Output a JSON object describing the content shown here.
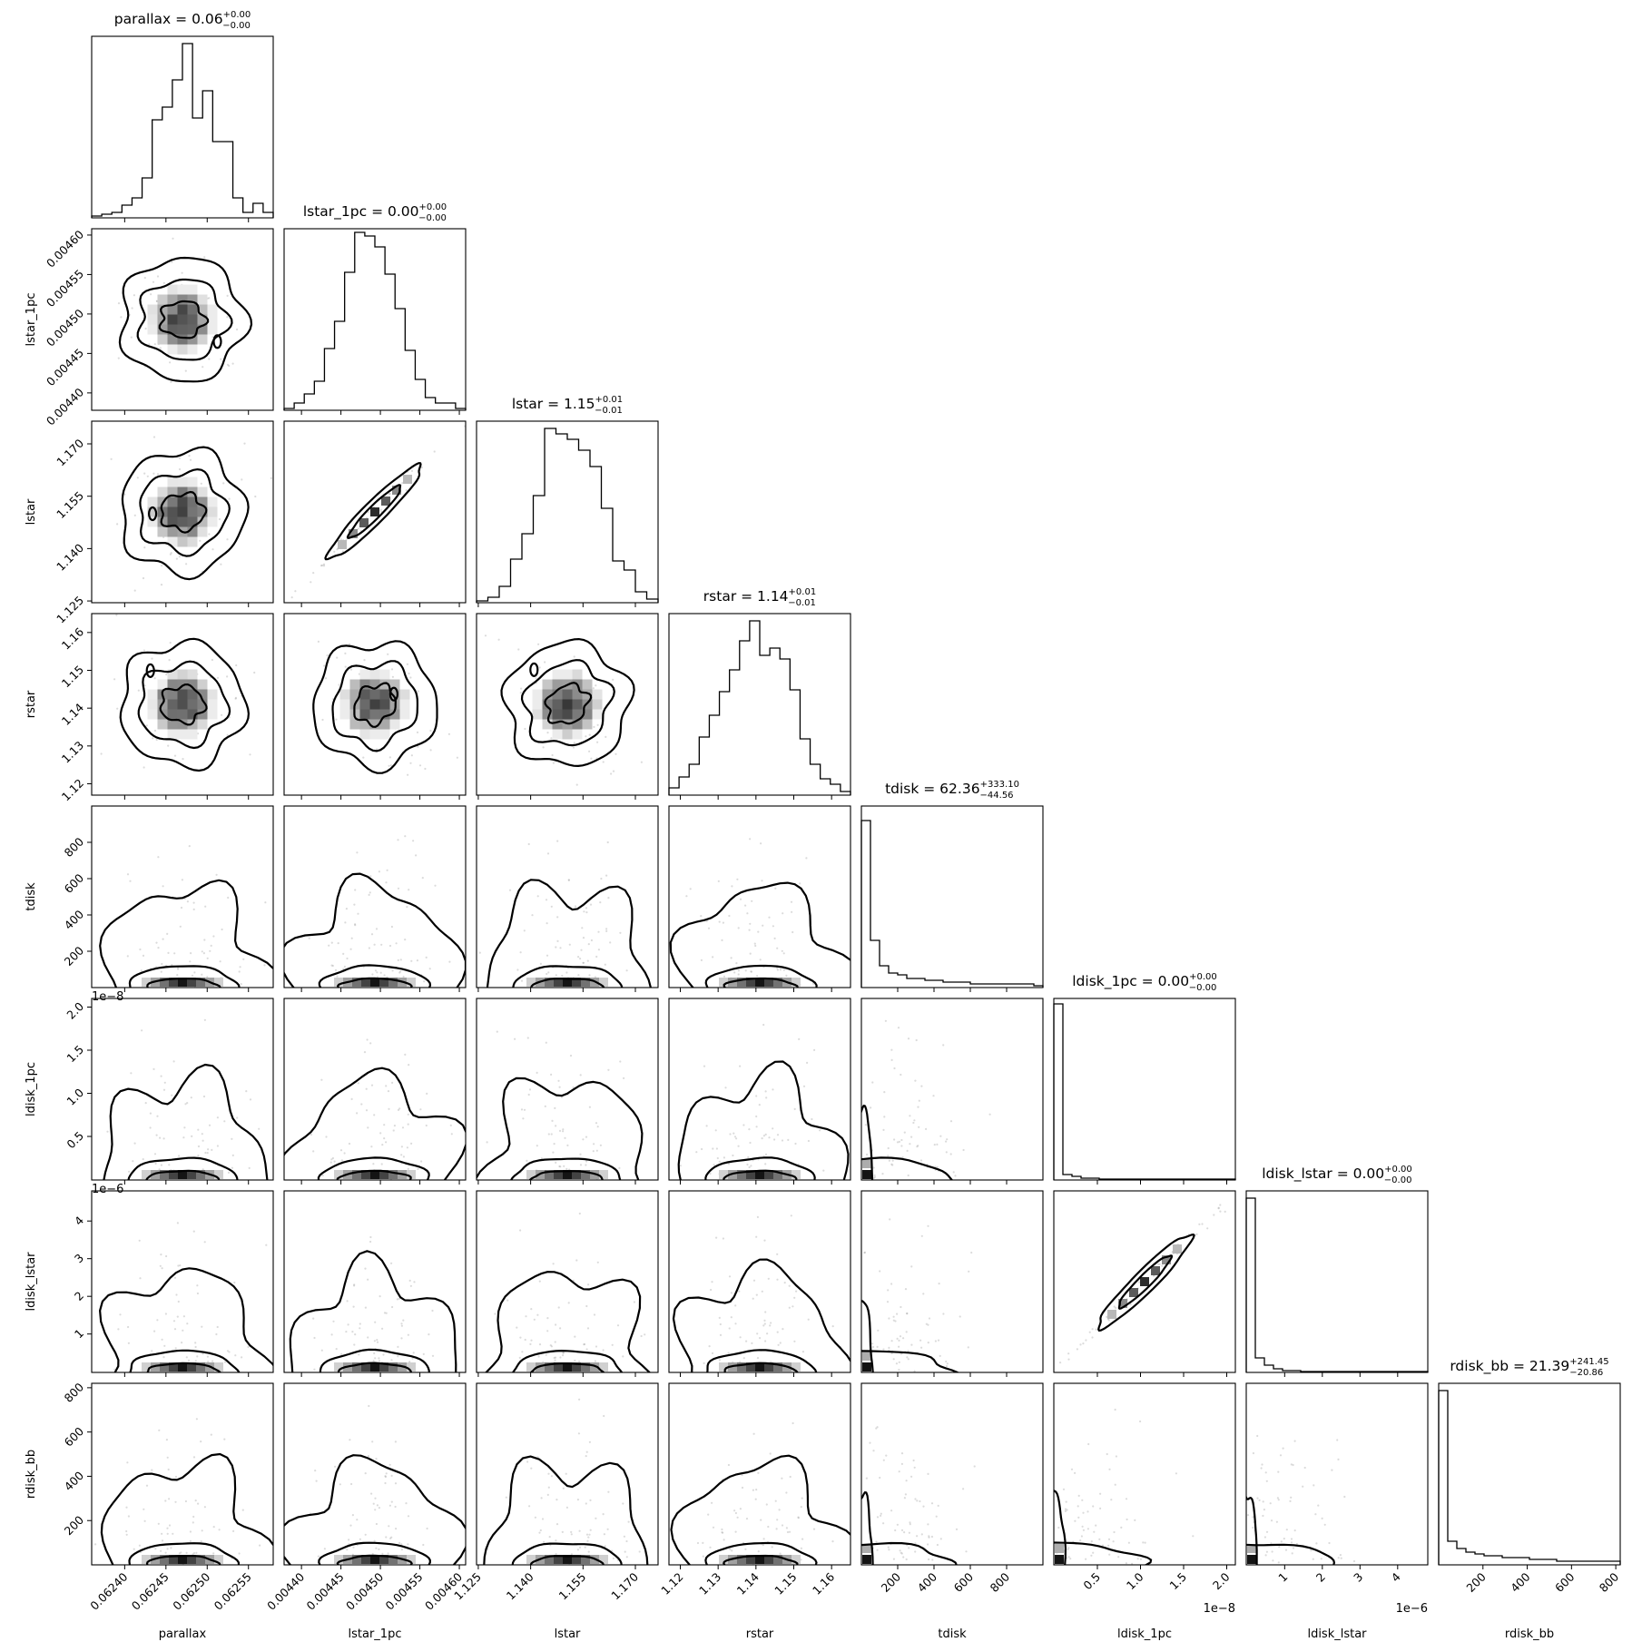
{
  "chart_data": {
    "type": "corner",
    "parameters": [
      {
        "name": "parallax",
        "label": "parallax",
        "median": 0.06249,
        "sigma": 3.5e-05,
        "range": [
          0.06236,
          0.06258
        ],
        "ticks": [
          "0.06240",
          "0.06245",
          "0.06250",
          "0.06255"
        ],
        "tick_values": [
          0.0624,
          0.06245,
          0.0625,
          0.06255
        ],
        "title": "parallax = 0.06",
        "title_sup": "+0.00",
        "title_sub": "−0.00",
        "offset_text": "",
        "hist": [
          0.01,
          0.02,
          0.03,
          0.07,
          0.11,
          0.22,
          0.54,
          0.61,
          0.76,
          0.96,
          0.55,
          0.7,
          0.42,
          0.42,
          0.11,
          0.03,
          0.08,
          0.03
        ]
      },
      {
        "name": "lstar_1pc",
        "label": "lstar_1pc",
        "median": 0.004495,
        "sigma": 3.2e-05,
        "range": [
          0.004378,
          0.004608
        ],
        "ticks": [
          "0.00440",
          "0.00445",
          "0.00450",
          "0.00455",
          "0.00460"
        ],
        "tick_values": [
          0.0044,
          0.00445,
          0.0045,
          0.00455,
          0.0046
        ],
        "title": "lstar_1pc = 0.00",
        "title_sup": "+0.00",
        "title_sub": "−0.00",
        "offset_text": "",
        "hist": [
          0.01,
          0.04,
          0.09,
          0.16,
          0.34,
          0.49,
          0.76,
          0.98,
          0.96,
          0.9,
          0.75,
          0.56,
          0.33,
          0.17,
          0.07,
          0.04,
          0.04,
          0.01
        ]
      },
      {
        "name": "lstar",
        "label": "lstar",
        "median": 1.152,
        "sigma": 0.008,
        "range": [
          1.1245,
          1.1765
        ],
        "ticks": [
          "1.125",
          "1.140",
          "1.155",
          "1.170"
        ],
        "tick_values": [
          1.125,
          1.14,
          1.155,
          1.17
        ],
        "title": "lstar = 1.15",
        "title_sup": "+0.01",
        "title_sub": "−0.01",
        "offset_text": "",
        "hist": [
          0.01,
          0.03,
          0.09,
          0.24,
          0.38,
          0.59,
          0.96,
          0.93,
          0.9,
          0.84,
          0.75,
          0.52,
          0.23,
          0.18,
          0.06,
          0.02
        ]
      },
      {
        "name": "rstar",
        "label": "rstar",
        "median": 1.14,
        "sigma": 0.008,
        "range": [
          1.117,
          1.165
        ],
        "ticks": [
          "1.12",
          "1.13",
          "1.14",
          "1.15",
          "1.16"
        ],
        "tick_values": [
          1.12,
          1.13,
          1.14,
          1.15,
          1.16
        ],
        "title": "rstar = 1.14",
        "title_sup": "+0.01",
        "title_sub": "−0.01",
        "offset_text": "",
        "hist": [
          0.04,
          0.1,
          0.17,
          0.32,
          0.44,
          0.57,
          0.69,
          0.85,
          0.96,
          0.77,
          0.81,
          0.75,
          0.58,
          0.31,
          0.17,
          0.09,
          0.06,
          0.02
        ]
      },
      {
        "name": "tdisk",
        "label": "tdisk",
        "median": 62.36,
        "sigma": 150,
        "range": [
          0,
          1000
        ],
        "ticks": [
          "200",
          "400",
          "600",
          "800"
        ],
        "tick_values": [
          200,
          400,
          600,
          800
        ],
        "title": "tdisk = 62.36",
        "title_sup": "+333.10",
        "title_sub": "−44.56",
        "offset_text": "",
        "hist": [
          0.92,
          0.26,
          0.12,
          0.08,
          0.07,
          0.05,
          0.05,
          0.04,
          0.04,
          0.03,
          0.03,
          0.03,
          0.02,
          0.02,
          0.02,
          0.02,
          0.02,
          0.02,
          0.02,
          0.01
        ]
      },
      {
        "name": "ldisk_1pc",
        "label": "ldisk_1pc",
        "median": 0.0,
        "sigma": 0.0,
        "range": [
          -0.005,
          2.1
        ],
        "ticks": [
          "0.5",
          "1.0",
          "1.5",
          "2.0"
        ],
        "tick_values": [
          0.5,
          1.0,
          1.5,
          2.0
        ],
        "title": "ldisk_1pc = 0.00",
        "title_sup": "+0.00",
        "title_sub": "−0.00",
        "offset_text": "1e−8",
        "hist": [
          0.97,
          0.03,
          0.02,
          0.01,
          0.01,
          0.005,
          0.005,
          0.005,
          0.005,
          0.005,
          0.005,
          0.005,
          0.005,
          0.005,
          0.005,
          0.005,
          0.005,
          0.005,
          0.005,
          0.005
        ]
      },
      {
        "name": "ldisk_lstar",
        "label": "ldisk_lstar",
        "median": 0.0,
        "sigma": 0.0,
        "range": [
          -0.02,
          4.8
        ],
        "ticks": [
          "1",
          "2",
          "3",
          "4"
        ],
        "tick_values": [
          1,
          2,
          3,
          4
        ],
        "title": "ldisk_lstar = 0.00",
        "title_sup": "+0.00",
        "title_sub": "−0.00",
        "offset_text": "1e−6",
        "hist": [
          0.96,
          0.08,
          0.04,
          0.02,
          0.01,
          0.01,
          0.005,
          0.005,
          0.005,
          0.005,
          0.005,
          0.005,
          0.005,
          0.005,
          0.005,
          0.005,
          0.005,
          0.005,
          0.005,
          0.005
        ]
      },
      {
        "name": "rdisk_bb",
        "label": "rdisk_bb",
        "median": 21.39,
        "sigma": 100,
        "range": [
          0,
          820
        ],
        "ticks": [
          "200",
          "400",
          "600",
          "800"
        ],
        "tick_values": [
          200,
          400,
          600,
          800
        ],
        "title": "rdisk_bb = 21.39",
        "title_sup": "+241.45",
        "title_sub": "−20.86",
        "offset_text": "",
        "hist": [
          0.96,
          0.13,
          0.09,
          0.07,
          0.06,
          0.05,
          0.05,
          0.04,
          0.04,
          0.04,
          0.03,
          0.03,
          0.03,
          0.02,
          0.02,
          0.02,
          0.02,
          0.02,
          0.02,
          0.02
        ]
      }
    ]
  }
}
